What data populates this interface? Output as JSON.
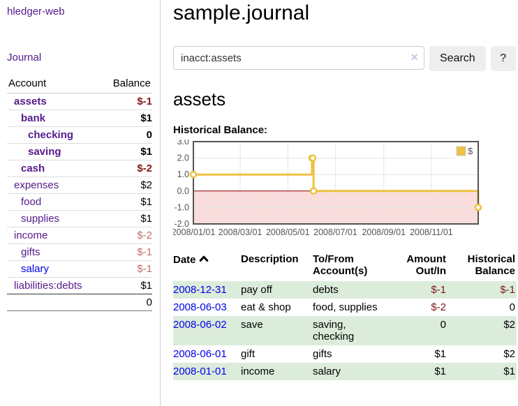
{
  "colors": {
    "purple": "#551a8b",
    "blue": "#0000ee",
    "neg_strong": "#811616",
    "neg_muted": "#bc6f6c",
    "stripe": "#dcecdb",
    "button_bg": "#eeeeee"
  },
  "sidebar": {
    "brand": "hledger-web",
    "nav_journal": "Journal",
    "accounts": {
      "header_account": "Account",
      "header_balance": "Balance",
      "rows": [
        {
          "name": "assets",
          "indent": 1,
          "bold": true,
          "balance": "$-1",
          "neg": "strong",
          "link": "visited"
        },
        {
          "name": "bank",
          "indent": 2,
          "bold": true,
          "balance": "$1",
          "neg": null,
          "link": "visited"
        },
        {
          "name": "checking",
          "indent": 3,
          "bold": true,
          "balance": "0",
          "neg": null,
          "link": "visited"
        },
        {
          "name": "saving",
          "indent": 3,
          "bold": true,
          "balance": "$1",
          "neg": null,
          "link": "visited"
        },
        {
          "name": "cash",
          "indent": 2,
          "bold": true,
          "balance": "$-2",
          "neg": "strong",
          "link": "visited"
        },
        {
          "name": "expenses",
          "indent": 1,
          "bold": false,
          "balance": "$2",
          "neg": null,
          "link": "visited"
        },
        {
          "name": "food",
          "indent": 2,
          "bold": false,
          "balance": "$1",
          "neg": null,
          "link": "visited"
        },
        {
          "name": "supplies",
          "indent": 2,
          "bold": false,
          "balance": "$1",
          "neg": null,
          "link": "visited"
        },
        {
          "name": "income",
          "indent": 1,
          "bold": false,
          "balance": "$-2",
          "neg": "muted",
          "link": "visited"
        },
        {
          "name": "gifts",
          "indent": 2,
          "bold": false,
          "balance": "$-1",
          "neg": "muted",
          "link": "visited"
        },
        {
          "name": "salary",
          "indent": 2,
          "bold": false,
          "balance": "$-1",
          "neg": "muted",
          "link": "new"
        },
        {
          "name": "liabilities:debts",
          "indent": 1,
          "bold": false,
          "balance": "$1",
          "neg": null,
          "link": "visited"
        }
      ],
      "total": "0"
    }
  },
  "main": {
    "title": "sample.journal",
    "search": {
      "value": "inacct:assets",
      "clear": "×",
      "search_button": "Search",
      "help_button": "?"
    },
    "account_heading": "assets",
    "section_label": "Historical Balance:"
  },
  "chart_data": {
    "type": "line",
    "step": true,
    "title": "Historical Balance:",
    "series": [
      {
        "name": "$",
        "points": [
          [
            "2008-01-01",
            1.0
          ],
          [
            "2008-06-01",
            2.0
          ],
          [
            "2008-06-02",
            2.0
          ],
          [
            "2008-06-03",
            0.0
          ],
          [
            "2008-12-31",
            -1.0
          ]
        ]
      }
    ],
    "x_range": [
      "2008-01-01",
      "2008-12-31"
    ],
    "ylim": [
      -2.0,
      3.0
    ],
    "y_ticks": [
      3.0,
      2.0,
      1.0,
      0.0,
      -1.0,
      -2.0
    ],
    "x_ticks": [
      "2008/01/01",
      "2008/03/01",
      "2008/05/01",
      "2008/07/01",
      "2008/09/01",
      "2008/11/01"
    ],
    "legend": {
      "label": "$",
      "position": "top-right"
    },
    "grid": true,
    "colors": {
      "line": "#edc240",
      "marker_fill": "#ffffff",
      "negative_region": "#f9dcdc",
      "zero_line": "#8b0000",
      "gridline": "#e6e6e6",
      "plot_border": "#545454",
      "tick_text": "#545454"
    }
  },
  "register": {
    "headers": [
      "Date",
      "Description",
      "To/From Account(s)",
      "Amount Out/In",
      "Historical Balance"
    ],
    "rows": [
      {
        "date": "2008-12-31",
        "description": "pay off",
        "accounts": "debts",
        "amount": "$-1",
        "amount_neg": true,
        "balance": "$-1",
        "balance_neg": true
      },
      {
        "date": "2008-06-03",
        "description": "eat & shop",
        "accounts": "food, supplies",
        "amount": "$-2",
        "amount_neg": true,
        "balance": "0",
        "balance_neg": false
      },
      {
        "date": "2008-06-02",
        "description": "save",
        "accounts": "saving, checking",
        "amount": "0",
        "amount_neg": false,
        "balance": "$2",
        "balance_neg": false
      },
      {
        "date": "2008-06-01",
        "description": "gift",
        "accounts": "gifts",
        "amount": "$1",
        "amount_neg": false,
        "balance": "$2",
        "balance_neg": false
      },
      {
        "date": "2008-01-01",
        "description": "income",
        "accounts": "salary",
        "amount": "$1",
        "amount_neg": false,
        "balance": "$1",
        "balance_neg": false
      }
    ]
  }
}
